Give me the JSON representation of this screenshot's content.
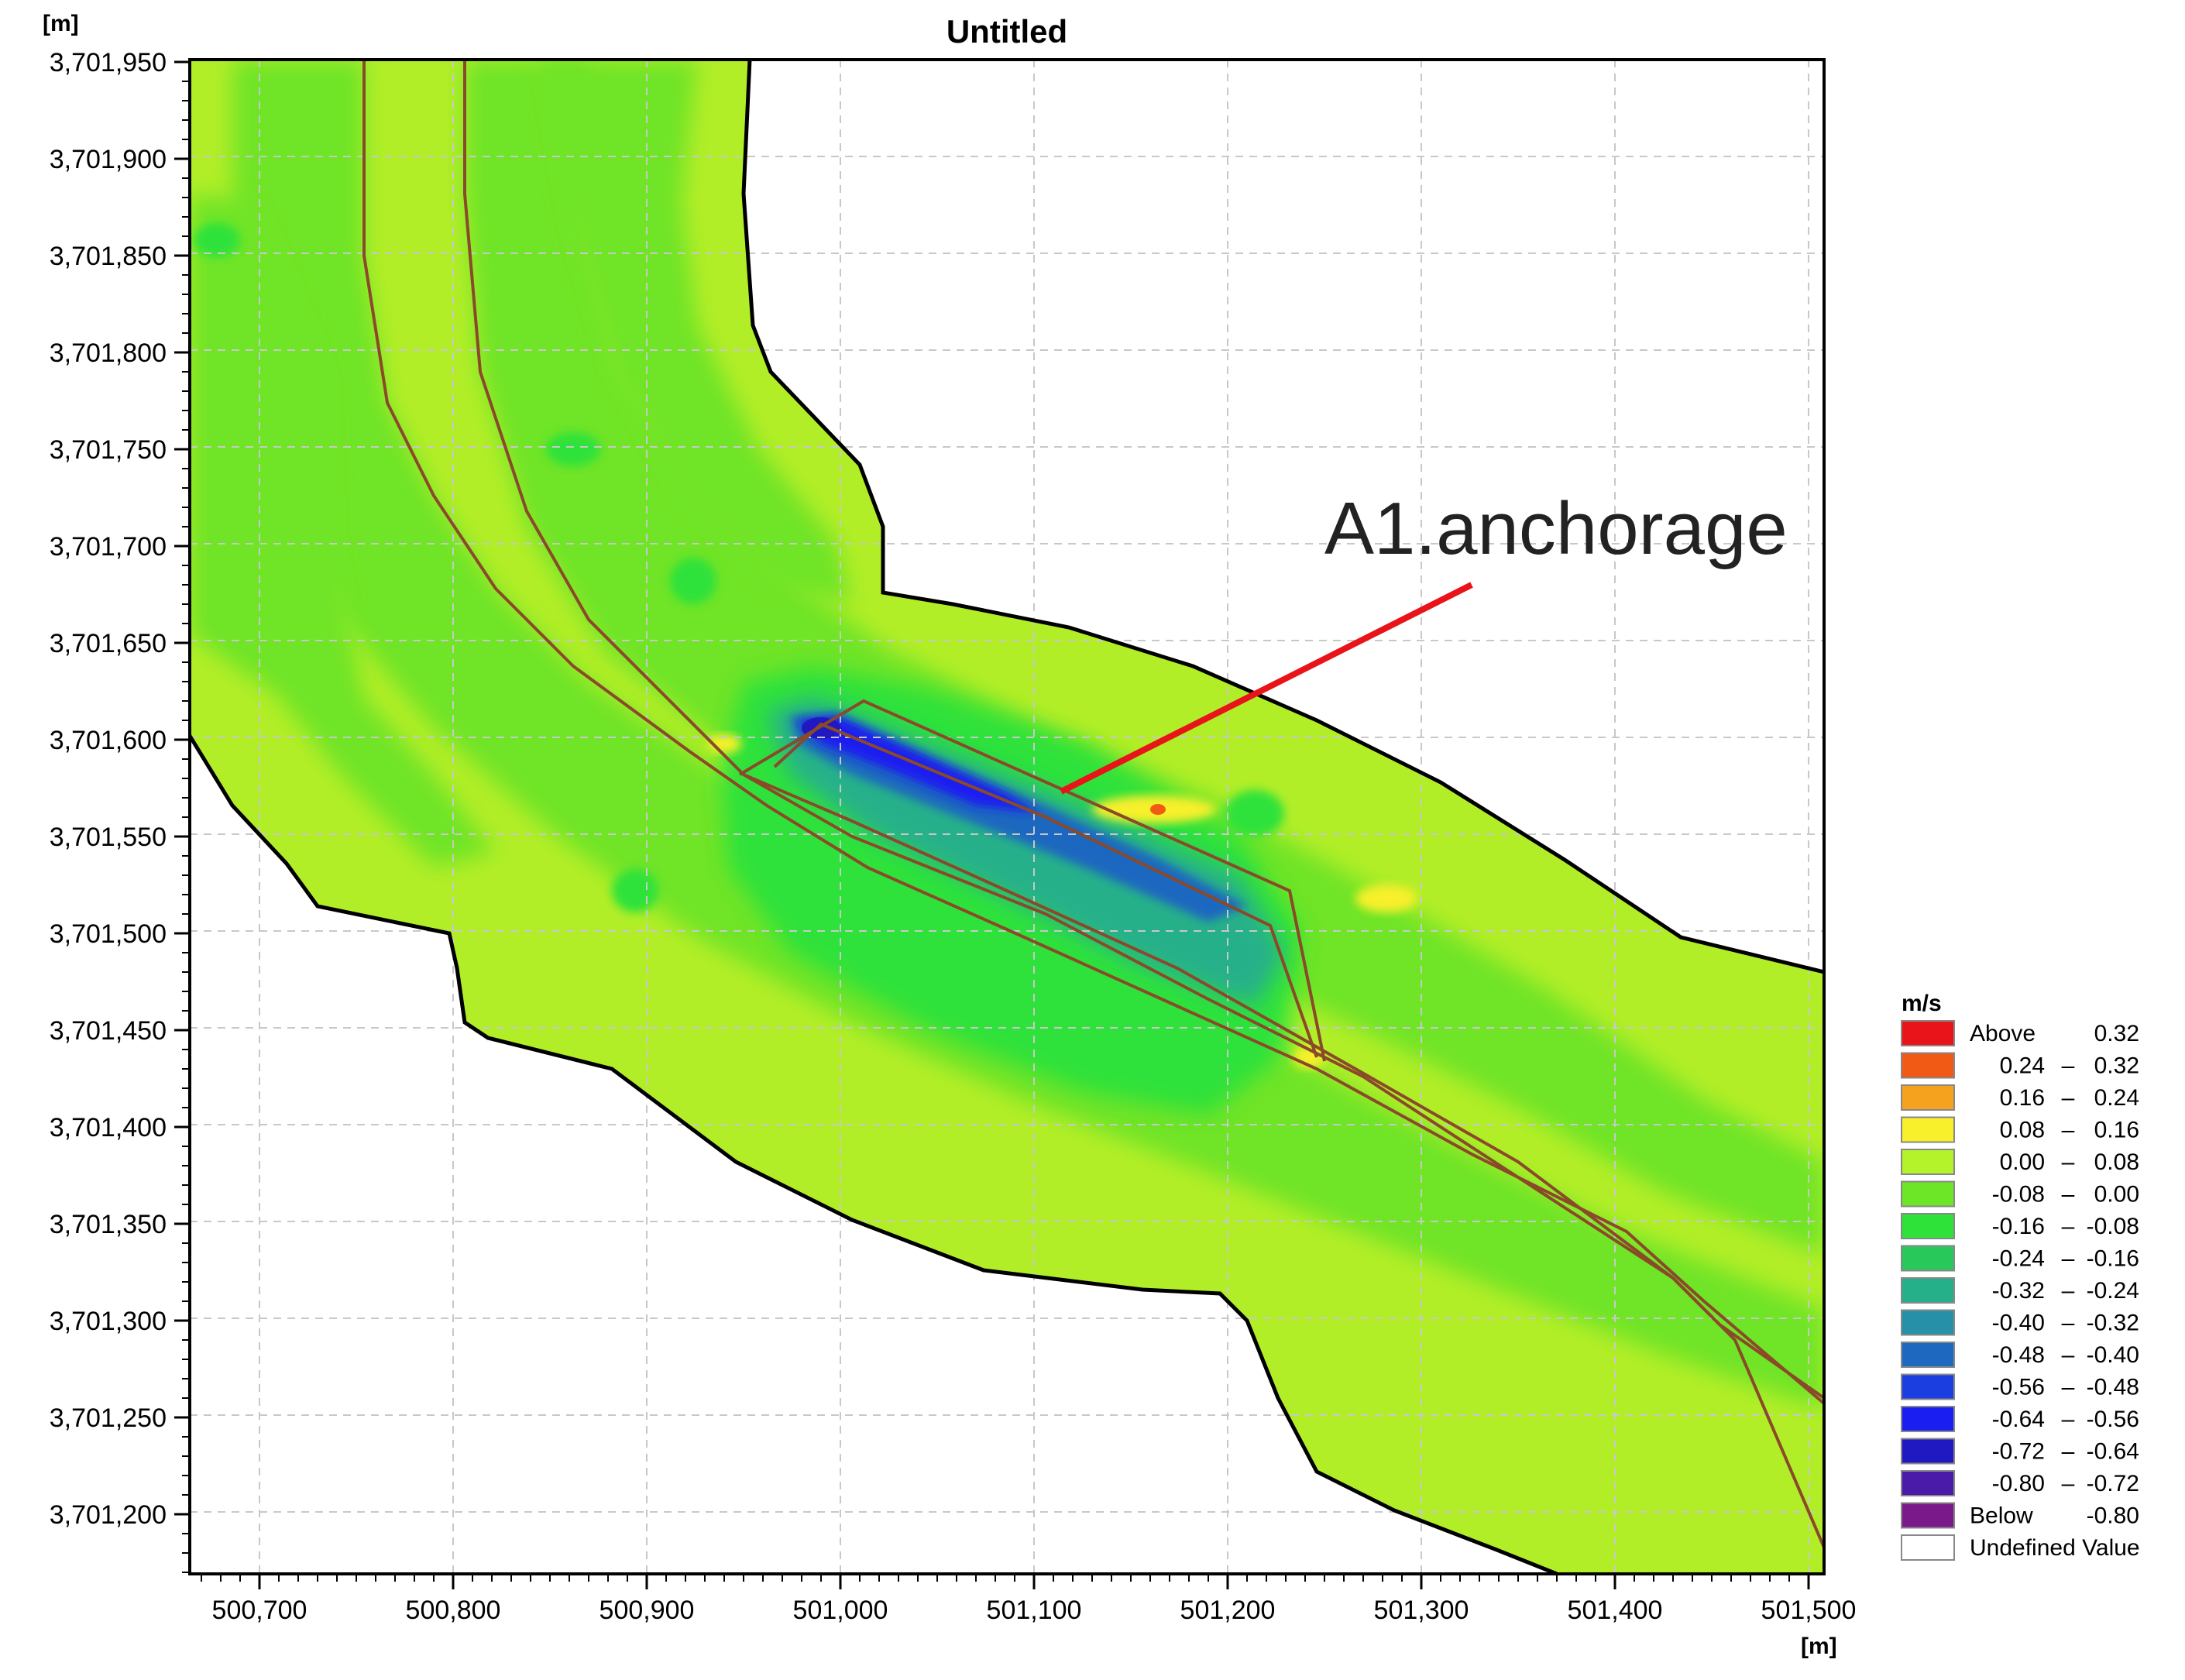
{
  "map": {
    "title": "Untitled",
    "y_unit": "[m]",
    "x_unit": "[m]",
    "annotation": "A1.anchorage",
    "y_ticks": [
      "3,701,950",
      "3,701,900",
      "3,701,850",
      "3,701,800",
      "3,701,750",
      "3,701,700",
      "3,701,650",
      "3,701,600",
      "3,701,550",
      "3,701,500",
      "3,701,450",
      "3,701,400",
      "3,701,350",
      "3,701,300",
      "3,701,250",
      "3,701,200"
    ],
    "x_ticks": [
      "500,700",
      "500,800",
      "500,900",
      "501,000",
      "501,100",
      "501,200",
      "501,300",
      "501,400",
      "501,500"
    ]
  },
  "legend": {
    "unit": "m/s",
    "items": [
      {
        "a": "Above",
        "sep": "",
        "b": "0.32",
        "color": "#e8141a"
      },
      {
        "a": "0.24",
        "sep": "–",
        "b": "0.32",
        "color": "#f05a14"
      },
      {
        "a": "0.16",
        "sep": "–",
        "b": "0.24",
        "color": "#f5a21e"
      },
      {
        "a": "0.08",
        "sep": "–",
        "b": "0.16",
        "color": "#f7f02a"
      },
      {
        "a": "0.00",
        "sep": "–",
        "b": "0.08",
        "color": "#b4f22a"
      },
      {
        "a": "-0.08",
        "sep": "–",
        "b": "0.00",
        "color": "#6ee628"
      },
      {
        "a": "-0.16",
        "sep": "–",
        "b": "-0.08",
        "color": "#2ee23a"
      },
      {
        "a": "-0.24",
        "sep": "–",
        "b": "-0.16",
        "color": "#28c85a"
      },
      {
        "a": "-0.32",
        "sep": "–",
        "b": "-0.24",
        "color": "#26b08a"
      },
      {
        "a": "-0.40",
        "sep": "–",
        "b": "-0.32",
        "color": "#2590a8"
      },
      {
        "a": "-0.48",
        "sep": "–",
        "b": "-0.40",
        "color": "#1e68c0"
      },
      {
        "a": "-0.56",
        "sep": "–",
        "b": "-0.48",
        "color": "#1a3ee0"
      },
      {
        "a": "-0.64",
        "sep": "–",
        "b": "-0.56",
        "color": "#1a1ef0"
      },
      {
        "a": "-0.72",
        "sep": "–",
        "b": "-0.64",
        "color": "#2018c0"
      },
      {
        "a": "-0.80",
        "sep": "–",
        "b": "-0.72",
        "color": "#4a1aa8"
      },
      {
        "a": "Below",
        "sep": "",
        "b": "-0.80",
        "color": "#7a1a8a"
      },
      {
        "a": "Undefined Value",
        "sep": "",
        "b": "",
        "color": "#ffffff"
      }
    ]
  }
}
